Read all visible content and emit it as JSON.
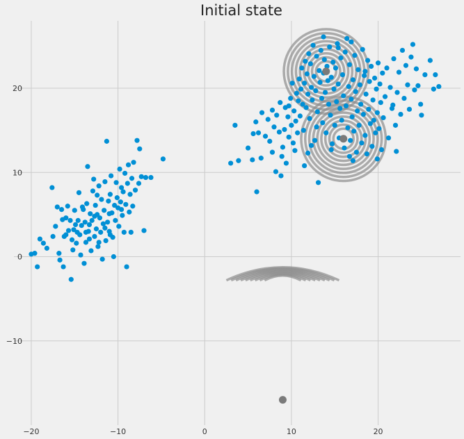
{
  "chart_data": {
    "type": "scatter",
    "title": "Initial state",
    "xlabel": "",
    "ylabel": "",
    "xlim": [
      -22,
      29.5
    ],
    "ylim": [
      -20,
      28
    ],
    "xticks": [
      -20,
      -10,
      0,
      10,
      20
    ],
    "yticks": [
      -10,
      0,
      10,
      20
    ],
    "grid": true,
    "colors": {
      "points": "#008fd5",
      "centers": "#7a7a7a",
      "contours": "#8c8c8c",
      "background": "#f0f0f0",
      "grid": "#cbcbcb"
    },
    "series": [
      {
        "points": [
          [
            -20.0,
            0.3
          ],
          [
            -19.6,
            0.4
          ],
          [
            -19.3,
            -1.2
          ],
          [
            -19.0,
            2.1
          ],
          [
            -18.6,
            1.6
          ],
          [
            -18.2,
            1.0
          ],
          [
            -17.6,
            8.2
          ],
          [
            -17.5,
            2.4
          ],
          [
            -17.2,
            3.6
          ],
          [
            -17.0,
            5.9
          ],
          [
            -16.8,
            0.4
          ],
          [
            -16.7,
            -0.4
          ],
          [
            -16.5,
            5.6
          ],
          [
            -16.3,
            -1.2
          ],
          [
            -16.2,
            2.4
          ],
          [
            -16.0,
            4.6
          ],
          [
            -16.0,
            2.6
          ],
          [
            -15.8,
            6.0
          ],
          [
            -15.7,
            3.1
          ],
          [
            -15.5,
            4.3
          ],
          [
            -15.4,
            -2.7
          ],
          [
            -15.3,
            2.0
          ],
          [
            -15.2,
            0.8
          ],
          [
            -15.0,
            5.5
          ],
          [
            -14.9,
            3.8
          ],
          [
            -14.8,
            1.6
          ],
          [
            -14.6,
            4.3
          ],
          [
            -14.5,
            7.6
          ],
          [
            -14.4,
            2.6
          ],
          [
            -14.3,
            0.2
          ],
          [
            -14.2,
            3.7
          ],
          [
            -14.0,
            5.6
          ],
          [
            -13.9,
            -0.8
          ],
          [
            -13.8,
            4.1
          ],
          [
            -13.7,
            1.7
          ],
          [
            -13.6,
            6.3
          ],
          [
            -13.5,
            10.7
          ],
          [
            -13.4,
            3.0
          ],
          [
            -13.3,
            2.1
          ],
          [
            -13.2,
            5.1
          ],
          [
            -13.1,
            0.7
          ],
          [
            -13.0,
            4.3
          ],
          [
            -12.9,
            7.8
          ],
          [
            -12.8,
            9.2
          ],
          [
            -12.7,
            2.4
          ],
          [
            -12.6,
            6.1
          ],
          [
            -12.5,
            3.3
          ],
          [
            -12.4,
            5.0
          ],
          [
            -12.3,
            1.2
          ],
          [
            -12.2,
            8.4
          ],
          [
            -12.1,
            4.6
          ],
          [
            -12.0,
            2.9
          ],
          [
            -11.9,
            6.8
          ],
          [
            -11.8,
            -0.3
          ],
          [
            -11.7,
            3.9
          ],
          [
            -11.6,
            5.5
          ],
          [
            -11.5,
            8.9
          ],
          [
            -11.4,
            1.9
          ],
          [
            -11.3,
            13.7
          ],
          [
            -11.2,
            4.1
          ],
          [
            -11.1,
            6.6
          ],
          [
            -11.0,
            3.0
          ],
          [
            -10.9,
            7.4
          ],
          [
            -10.8,
            9.6
          ],
          [
            -10.7,
            5.2
          ],
          [
            -10.6,
            2.3
          ],
          [
            -10.5,
            0.0
          ],
          [
            -10.4,
            6.1
          ],
          [
            -10.3,
            4.3
          ],
          [
            -10.2,
            8.8
          ],
          [
            -10.1,
            7.0
          ],
          [
            -10.0,
            5.8
          ],
          [
            -9.9,
            3.6
          ],
          [
            -9.8,
            10.4
          ],
          [
            -9.7,
            6.5
          ],
          [
            -9.6,
            8.2
          ],
          [
            -9.5,
            4.9
          ],
          [
            -9.4,
            7.7
          ],
          [
            -9.3,
            2.9
          ],
          [
            -9.2,
            9.9
          ],
          [
            -9.1,
            6.2
          ],
          [
            -9.0,
            -1.2
          ],
          [
            -8.9,
            8.7
          ],
          [
            -8.8,
            10.9
          ],
          [
            -8.7,
            5.3
          ],
          [
            -8.6,
            7.4
          ],
          [
            -8.5,
            2.9
          ],
          [
            -8.4,
            9.3
          ],
          [
            -8.3,
            6.0
          ],
          [
            -8.2,
            11.2
          ],
          [
            -8.0,
            7.9
          ],
          [
            -7.8,
            13.8
          ],
          [
            -7.6,
            8.7
          ],
          [
            -7.5,
            12.8
          ],
          [
            -7.3,
            9.5
          ],
          [
            -7.0,
            3.1
          ],
          [
            -6.8,
            9.4
          ],
          [
            -6.2,
            9.4
          ],
          [
            -4.8,
            11.6
          ],
          [
            -14.1,
            5.9
          ],
          [
            -13.3,
            3.8
          ],
          [
            -12.7,
            4.8
          ],
          [
            -11.5,
            3.4
          ],
          [
            -10.9,
            2.6
          ],
          [
            -12.4,
            7.3
          ],
          [
            -13.7,
            2.9
          ],
          [
            -15.1,
            3.2
          ],
          [
            -16.4,
            4.4
          ],
          [
            -11.0,
            5.1
          ],
          [
            -9.6,
            5.6
          ],
          [
            -12.2,
            1.7
          ],
          [
            -14.7,
            2.9
          ]
        ]
      },
      {
        "points": [
          [
            3.0,
            11.1
          ],
          [
            3.5,
            15.6
          ],
          [
            3.9,
            11.4
          ],
          [
            5.0,
            12.9
          ],
          [
            5.5,
            11.5
          ],
          [
            5.6,
            14.6
          ],
          [
            5.9,
            16.0
          ],
          [
            6.0,
            7.7
          ],
          [
            6.2,
            14.7
          ],
          [
            6.5,
            11.7
          ],
          [
            6.6,
            17.1
          ],
          [
            7.0,
            14.3
          ],
          [
            7.3,
            16.3
          ],
          [
            7.5,
            13.7
          ],
          [
            7.8,
            12.4
          ],
          [
            8.0,
            15.4
          ],
          [
            8.2,
            10.1
          ],
          [
            8.3,
            16.8
          ],
          [
            8.6,
            14.8
          ],
          [
            8.8,
            9.6
          ],
          [
            8.9,
            11.9
          ],
          [
            9.0,
            13.0
          ],
          [
            9.2,
            15.1
          ],
          [
            9.3,
            17.7
          ],
          [
            9.4,
            11.1
          ],
          [
            9.6,
            16.6
          ],
          [
            9.7,
            14.2
          ],
          [
            9.9,
            18.8
          ],
          [
            10.0,
            15.6
          ],
          [
            10.2,
            13.5
          ],
          [
            10.3,
            17.3
          ],
          [
            10.5,
            16.1
          ],
          [
            10.6,
            19.4
          ],
          [
            10.7,
            14.7
          ],
          [
            10.8,
            18.5
          ],
          [
            10.9,
            21.1
          ],
          [
            11.0,
            16.7
          ],
          [
            11.1,
            19.9
          ],
          [
            11.2,
            22.4
          ],
          [
            11.3,
            18.1
          ],
          [
            11.4,
            15.0
          ],
          [
            11.5,
            20.6
          ],
          [
            11.6,
            23.2
          ],
          [
            11.7,
            17.7
          ],
          [
            11.8,
            21.7
          ],
          [
            11.9,
            19.3
          ],
          [
            12.0,
            24.1
          ],
          [
            12.1,
            16.4
          ],
          [
            12.2,
            22.9
          ],
          [
            12.3,
            20.1
          ],
          [
            12.4,
            18.6
          ],
          [
            12.5,
            25.1
          ],
          [
            12.6,
            21.4
          ],
          [
            12.7,
            13.8
          ],
          [
            12.8,
            19.7
          ],
          [
            12.9,
            23.8
          ],
          [
            13.0,
            17.2
          ],
          [
            13.1,
            8.8
          ],
          [
            13.2,
            22.1
          ],
          [
            13.3,
            20.7
          ],
          [
            13.4,
            24.5
          ],
          [
            13.5,
            18.8
          ],
          [
            13.6,
            15.9
          ],
          [
            13.7,
            21.8
          ],
          [
            13.8,
            23.4
          ],
          [
            13.9,
            19.5
          ],
          [
            14.0,
            14.7
          ],
          [
            14.1,
            22.6
          ],
          [
            14.2,
            20.9
          ],
          [
            14.3,
            18.1
          ],
          [
            14.4,
            24.9
          ],
          [
            14.5,
            16.8
          ],
          [
            14.6,
            21.3
          ],
          [
            14.7,
            13.4
          ],
          [
            14.8,
            23.1
          ],
          [
            14.9,
            19.9
          ],
          [
            15.0,
            15.6
          ],
          [
            15.1,
            22.4
          ],
          [
            15.2,
            18.4
          ],
          [
            15.3,
            25.3
          ],
          [
            15.4,
            20.5
          ],
          [
            15.5,
            14.1
          ],
          [
            15.6,
            17.6
          ],
          [
            15.7,
            23.6
          ],
          [
            15.8,
            16.2
          ],
          [
            15.9,
            21.6
          ],
          [
            16.0,
            19.1
          ],
          [
            16.1,
            12.9
          ],
          [
            16.2,
            24.3
          ],
          [
            16.3,
            17.9
          ],
          [
            16.4,
            25.9
          ],
          [
            16.5,
            15.3
          ],
          [
            16.6,
            20.2
          ],
          [
            16.7,
            22.8
          ],
          [
            16.8,
            13.8
          ],
          [
            16.9,
            18.7
          ],
          [
            17.0,
            16.6
          ],
          [
            17.1,
            21.0
          ],
          [
            17.2,
            14.9
          ],
          [
            17.3,
            23.9
          ],
          [
            17.4,
            19.6
          ],
          [
            17.5,
            12.4
          ],
          [
            17.6,
            17.3
          ],
          [
            17.7,
            22.2
          ],
          [
            17.8,
            15.6
          ],
          [
            17.9,
            20.4
          ],
          [
            18.0,
            18.1
          ],
          [
            18.1,
            13.5
          ],
          [
            18.2,
            24.6
          ],
          [
            18.3,
            16.9
          ],
          [
            18.4,
            21.5
          ],
          [
            18.5,
            14.4
          ],
          [
            18.6,
            19.3
          ],
          [
            18.7,
            12.2
          ],
          [
            18.8,
            23.3
          ],
          [
            18.9,
            17.5
          ],
          [
            19.0,
            20.8
          ],
          [
            19.1,
            15.8
          ],
          [
            19.2,
            22.6
          ],
          [
            19.3,
            13.1
          ],
          [
            19.4,
            18.6
          ],
          [
            19.5,
            16.2
          ],
          [
            19.6,
            21.2
          ],
          [
            19.7,
            14.7
          ],
          [
            19.8,
            19.9
          ],
          [
            19.9,
            17.1
          ],
          [
            20.0,
            23.0
          ],
          [
            20.1,
            15.2
          ],
          [
            20.2,
            20.5
          ],
          [
            20.3,
            18.3
          ],
          [
            20.4,
            12.7
          ],
          [
            20.5,
            21.8
          ],
          [
            20.6,
            16.5
          ],
          [
            20.8,
            19.0
          ],
          [
            21.0,
            22.4
          ],
          [
            21.2,
            14.1
          ],
          [
            21.4,
            20.1
          ],
          [
            21.6,
            17.6
          ],
          [
            21.8,
            23.5
          ],
          [
            22.0,
            15.6
          ],
          [
            22.2,
            19.5
          ],
          [
            22.4,
            21.9
          ],
          [
            22.6,
            16.9
          ],
          [
            22.8,
            24.5
          ],
          [
            23.0,
            18.8
          ],
          [
            23.2,
            22.7
          ],
          [
            23.4,
            20.4
          ],
          [
            23.6,
            17.5
          ],
          [
            23.8,
            23.7
          ],
          [
            24.0,
            25.2
          ],
          [
            24.2,
            19.8
          ],
          [
            24.4,
            22.3
          ],
          [
            24.6,
            20.3
          ],
          [
            25.0,
            16.8
          ],
          [
            25.4,
            21.6
          ],
          [
            26.0,
            23.3
          ],
          [
            26.4,
            19.9
          ],
          [
            26.6,
            21.6
          ],
          [
            27.0,
            20.2
          ],
          [
            9.7,
            17.9
          ],
          [
            10.4,
            12.6
          ],
          [
            11.5,
            10.8
          ],
          [
            12.3,
            13.2
          ],
          [
            8.7,
            18.3
          ],
          [
            7.8,
            17.4
          ],
          [
            10.1,
            20.6
          ],
          [
            12.9,
            15.4
          ],
          [
            14.6,
            12.7
          ],
          [
            16.7,
            11.9
          ],
          [
            19.9,
            11.6
          ],
          [
            22.1,
            12.5
          ],
          [
            21.7,
            18.0
          ],
          [
            24.9,
            18.1
          ],
          [
            15.4,
            24.8
          ],
          [
            13.7,
            26.1
          ],
          [
            16.9,
            25.5
          ],
          [
            18.5,
            22.0
          ],
          [
            11.9,
            12.3
          ],
          [
            17.1,
            11.4
          ]
        ]
      }
    ],
    "centers": [
      {
        "x": 14.0,
        "y": 22.0
      },
      {
        "x": 16.0,
        "y": 14.0
      },
      {
        "x": 9.0,
        "y": -17.0
      }
    ],
    "contours": [
      {
        "shape": "spiral-circle",
        "cx": 14.0,
        "cy": 22.0
      },
      {
        "shape": "spiral-circle",
        "cx": 16.0,
        "cy": 14.0
      },
      {
        "shape": "flat-arc",
        "cx": 9.0,
        "cy": -2.5
      }
    ]
  }
}
